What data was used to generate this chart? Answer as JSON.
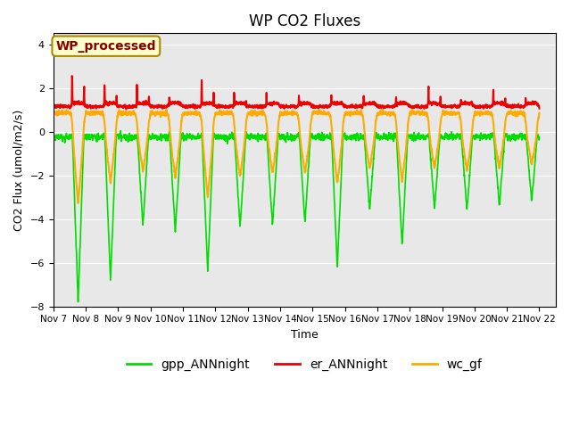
{
  "title": "WP CO2 Fluxes",
  "xlabel": "Time",
  "ylabel": "CO2 Flux (umol/m2/s)",
  "ylim": [
    -8,
    4.5
  ],
  "xlim": [
    0,
    15.5
  ],
  "yticks": [
    -8,
    -6,
    -4,
    -2,
    0,
    2,
    4
  ],
  "xtick_labels": [
    "Nov 7",
    "Nov 8",
    "Nov 9",
    "Nov 10",
    "Nov 11",
    "Nov 12",
    "Nov 13",
    "Nov 14",
    "Nov 15",
    "Nov 16",
    "Nov 17",
    "Nov 18",
    "Nov 19",
    "Nov 20",
    "Nov 21",
    "Nov 22"
  ],
  "series": {
    "gpp_ANNnight": {
      "color": "#00dd00",
      "linewidth": 1.2,
      "label": "gpp_ANNnight"
    },
    "er_ANNnight": {
      "color": "#ee0000",
      "linewidth": 1.5,
      "label": "er_ANNnight"
    },
    "wc_gf": {
      "color": "#ffaa00",
      "linewidth": 1.5,
      "label": "wc_gf"
    }
  },
  "annotation_text": "WP_processed",
  "annotation_color": "#880000",
  "annotation_bg": "#ffffcc",
  "annotation_fontsize": 10,
  "bg_color": "#e8e8e8",
  "legend_pos": "lower center",
  "title_fontsize": 12,
  "gpp_day_base": -0.25,
  "gpp_amplitudes": [
    7.8,
    6.8,
    4.3,
    4.6,
    6.4,
    4.4,
    4.3,
    4.2,
    6.2,
    3.6,
    5.2,
    3.5,
    3.6,
    3.4,
    3.2
  ],
  "wc_day_base": 0.85,
  "wc_amplitudes": [
    5.5,
    3.9,
    3.0,
    3.5,
    5.0,
    3.5,
    3.2,
    3.2,
    4.0,
    2.8,
    3.8,
    2.8,
    3.0,
    2.8,
    2.5
  ],
  "er_base": 1.15,
  "er_peak_vals": [
    2.7,
    2.15,
    2.1,
    1.45,
    2.35,
    1.8,
    1.65,
    1.55,
    1.55,
    1.65,
    1.55,
    2.05,
    1.45,
    1.95,
    1.55
  ],
  "night_start": 0.58,
  "night_end": 0.95
}
